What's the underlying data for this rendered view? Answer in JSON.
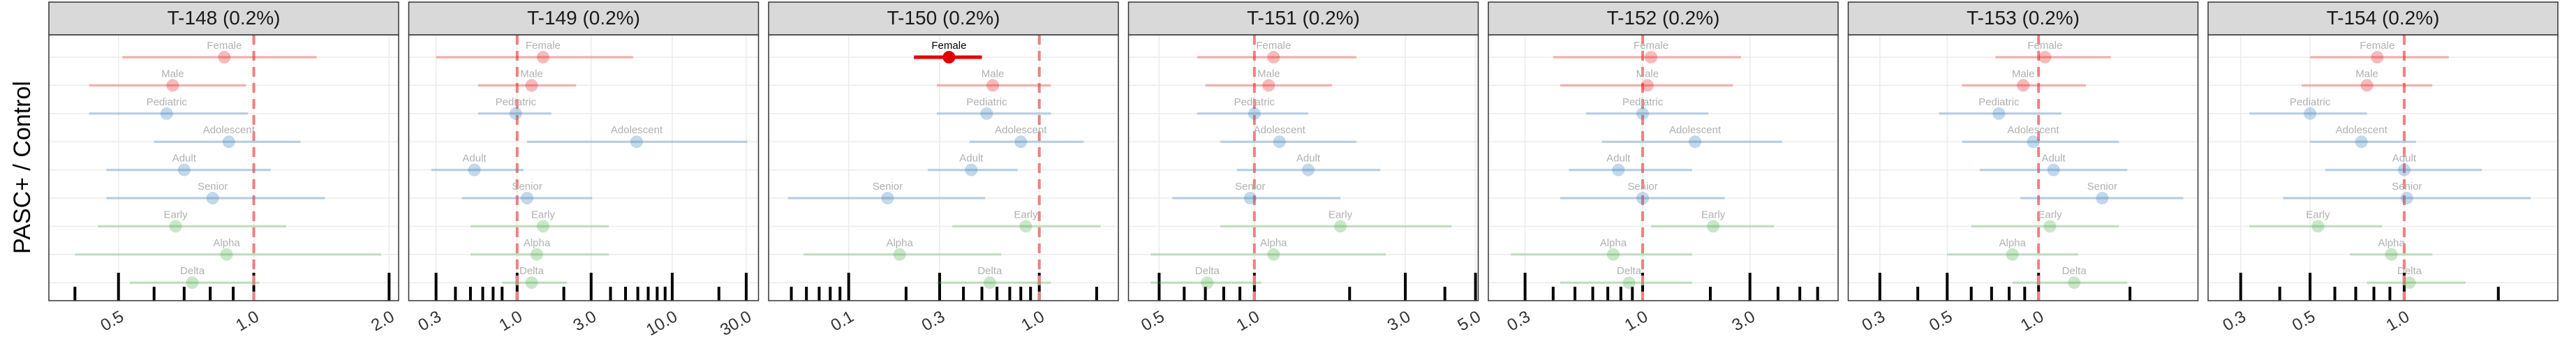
{
  "axis_label": "PASC+ / Control",
  "chart_data": [
    {
      "type": "forest",
      "title": "T-148 (0.2%)",
      "categories": [
        "Female",
        "Male",
        "Pediatric",
        "Adolescent",
        "Adult",
        "Senior",
        "Early",
        "Alpha",
        "Delta"
      ],
      "values": [
        0.86,
        0.66,
        0.64,
        0.88,
        0.7,
        0.81,
        0.67,
        0.87,
        0.73
      ],
      "lower": [
        0.51,
        0.43,
        0.43,
        0.6,
        0.47,
        0.47,
        0.45,
        0.4,
        0.53
      ],
      "upper": [
        1.38,
        0.96,
        0.97,
        1.27,
        1.09,
        1.44,
        1.18,
        1.92,
        1.03
      ],
      "colors": [
        "#e41a1c",
        "#e41a1c",
        "#377eb8",
        "#377eb8",
        "#377eb8",
        "#377eb8",
        "#4daf4a",
        "#4daf4a",
        "#4daf4a"
      ],
      "highlight": [],
      "highlight_color": "#e00000",
      "log_x": true,
      "ref_line": 1,
      "xlim": [
        0.35,
        2.1
      ],
      "xticks": [
        0.5,
        {
          "value": 1,
          "label": "1.0"
        },
        {
          "value": 2,
          "label": "2.0"
        }
      ],
      "minor_xticks": [
        0.4,
        0.6,
        0.7,
        0.8,
        0.9
      ]
    },
    {
      "type": "forest",
      "title": "T-149 (0.2%)",
      "categories": [
        "Female",
        "Male",
        "Pediatric",
        "Adolescent",
        "Adult",
        "Senior",
        "Early",
        "Alpha",
        "Delta"
      ],
      "values": [
        1.47,
        1.24,
        0.98,
        5.9,
        0.53,
        1.16,
        1.47,
        1.34,
        1.24
      ],
      "lower": [
        0.3,
        0.56,
        0.56,
        1.16,
        0.28,
        0.44,
        0.5,
        0.5,
        0.8
      ],
      "upper": [
        5.6,
        2.4,
        1.66,
        30.5,
        1.1,
        3.05,
        3.9,
        3.9,
        2.1
      ],
      "colors": [
        "#e41a1c",
        "#e41a1c",
        "#377eb8",
        "#377eb8",
        "#377eb8",
        "#377eb8",
        "#4daf4a",
        "#4daf4a",
        "#4daf4a"
      ],
      "highlight": [],
      "highlight_color": "#e00000",
      "log_x": true,
      "ref_line": 1,
      "xlim": [
        0.2,
        36
      ],
      "xticks": [
        0.3,
        {
          "value": 1,
          "label": "1.0"
        },
        {
          "value": 3,
          "label": "3.0"
        },
        {
          "value": 10,
          "label": "10.0"
        },
        {
          "value": 30,
          "label": "30.0"
        }
      ],
      "minor_xticks": [
        0.4,
        0.5,
        0.6,
        0.7,
        0.8,
        2,
        4,
        5,
        6,
        7,
        8,
        9,
        20
      ]
    },
    {
      "type": "forest",
      "title": "T-150 (0.2%)",
      "categories": [
        "Female",
        "Male",
        "Pediatric",
        "Adolescent",
        "Adult",
        "Senior",
        "Early",
        "Alpha",
        "Delta"
      ],
      "values": [
        0.336,
        0.57,
        0.53,
        0.8,
        0.44,
        0.16,
        0.85,
        0.185,
        0.55
      ],
      "lower": [
        0.22,
        0.29,
        0.29,
        0.43,
        0.26,
        0.048,
        0.35,
        0.058,
        0.29
      ],
      "upper": [
        0.5,
        1.15,
        1.15,
        1.71,
        0.77,
        0.52,
        2.1,
        0.63,
        1.15
      ],
      "colors": [
        "#e41a1c",
        "#e41a1c",
        "#377eb8",
        "#377eb8",
        "#377eb8",
        "#377eb8",
        "#4daf4a",
        "#4daf4a",
        "#4daf4a"
      ],
      "highlight": [
        0
      ],
      "highlight_color": "#e00000",
      "log_x": true,
      "ref_line": 1,
      "xlim": [
        0.038,
        2.6
      ],
      "xticks": [
        0.1,
        0.3,
        {
          "value": 1,
          "label": "1.0"
        }
      ],
      "minor_xticks": [
        0.05,
        0.06,
        0.07,
        0.08,
        0.09,
        0.2,
        0.4,
        0.5,
        0.6,
        0.7,
        0.8,
        0.9,
        2
      ]
    },
    {
      "type": "forest",
      "title": "T-151 (0.2%)",
      "categories": [
        "Female",
        "Male",
        "Pediatric",
        "Adolescent",
        "Adult",
        "Senior",
        "Early",
        "Alpha",
        "Delta"
      ],
      "values": [
        1.15,
        1.11,
        1.0,
        1.2,
        1.48,
        0.97,
        1.87,
        1.15,
        0.71
      ],
      "lower": [
        0.66,
        0.7,
        0.66,
        0.78,
        0.88,
        0.55,
        0.78,
        0.47,
        0.47
      ],
      "upper": [
        2.1,
        1.76,
        1.48,
        2.1,
        2.5,
        1.87,
        4.2,
        2.6,
        1.05
      ],
      "colors": [
        "#e41a1c",
        "#e41a1c",
        "#377eb8",
        "#377eb8",
        "#377eb8",
        "#377eb8",
        "#4daf4a",
        "#4daf4a",
        "#4daf4a"
      ],
      "highlight": [],
      "highlight_color": "#e00000",
      "log_x": true,
      "ref_line": 1,
      "xlim": [
        0.4,
        5.1
      ],
      "xticks": [
        0.5,
        {
          "value": 1,
          "label": "1.0"
        },
        {
          "value": 3,
          "label": "3.0"
        },
        {
          "value": 5,
          "label": "5.0"
        }
      ],
      "minor_xticks": [
        0.6,
        0.7,
        0.8,
        0.9,
        2,
        4
      ]
    },
    {
      "type": "forest",
      "title": "T-152 (0.2%)",
      "categories": [
        "Female",
        "Male",
        "Pediatric",
        "Adolescent",
        "Adult",
        "Senior",
        "Early",
        "Alpha",
        "Delta"
      ],
      "values": [
        1.09,
        1.05,
        1.0,
        1.71,
        0.78,
        1.0,
        2.06,
        0.74,
        0.87
      ],
      "lower": [
        0.4,
        0.43,
        0.56,
        0.66,
        0.47,
        0.43,
        1.09,
        0.26,
        0.43
      ],
      "upper": [
        2.74,
        2.52,
        1.96,
        4.17,
        1.66,
        2.32,
        3.84,
        1.66,
        1.66
      ],
      "colors": [
        "#e41a1c",
        "#e41a1c",
        "#377eb8",
        "#377eb8",
        "#377eb8",
        "#377eb8",
        "#4daf4a",
        "#4daf4a",
        "#4daf4a"
      ],
      "highlight": [],
      "highlight_color": "#e00000",
      "log_x": true,
      "ref_line": 1,
      "xlim": [
        0.206,
        7.4
      ],
      "xticks": [
        0.3,
        {
          "value": 1,
          "label": "1.0"
        },
        {
          "value": 3,
          "label": "3.0"
        }
      ],
      "minor_xticks": [
        0.4,
        0.5,
        0.6,
        0.7,
        0.8,
        0.9,
        2,
        4,
        5,
        6
      ]
    },
    {
      "type": "forest",
      "title": "T-153 (0.2%)",
      "categories": [
        "Female",
        "Male",
        "Pediatric",
        "Adolescent",
        "Adult",
        "Senior",
        "Early",
        "Alpha",
        "Delta"
      ],
      "values": [
        1.05,
        0.89,
        0.74,
        0.96,
        1.12,
        1.62,
        1.09,
        0.82,
        1.31
      ],
      "lower": [
        0.72,
        0.56,
        0.47,
        0.56,
        0.64,
        0.87,
        0.6,
        0.5,
        0.82
      ],
      "upper": [
        1.73,
        1.43,
        1.19,
        1.84,
        1.96,
        3.0,
        1.84,
        1.35,
        1.96
      ],
      "colors": [
        "#e41a1c",
        "#e41a1c",
        "#377eb8",
        "#377eb8",
        "#377eb8",
        "#377eb8",
        "#4daf4a",
        "#4daf4a",
        "#4daf4a"
      ],
      "highlight": [],
      "highlight_color": "#e00000",
      "log_x": true,
      "ref_line": 1,
      "xlim": [
        0.236,
        3.35
      ],
      "xticks": [
        0.3,
        0.5,
        {
          "value": 1,
          "label": "1.0"
        }
      ],
      "minor_xticks": [
        0.4,
        0.6,
        0.7,
        0.8,
        0.9,
        2
      ]
    },
    {
      "type": "forest",
      "title": "T-154 (0.2%)",
      "categories": [
        "Female",
        "Male",
        "Pediatric",
        "Adolescent",
        "Adult",
        "Senior",
        "Early",
        "Alpha",
        "Delta"
      ],
      "values": [
        0.82,
        0.76,
        0.5,
        0.73,
        1.0,
        1.02,
        0.53,
        0.91,
        1.04
      ],
      "lower": [
        0.5,
        0.47,
        0.32,
        0.5,
        0.56,
        0.41,
        0.32,
        0.67,
        0.76
      ],
      "upper": [
        1.39,
        1.23,
        0.76,
        1.09,
        1.77,
        2.54,
        0.85,
        1.23,
        1.57
      ],
      "colors": [
        "#e41a1c",
        "#e41a1c",
        "#377eb8",
        "#377eb8",
        "#377eb8",
        "#377eb8",
        "#4daf4a",
        "#4daf4a",
        "#4daf4a"
      ],
      "highlight": [],
      "highlight_color": "#e00000",
      "log_x": true,
      "ref_line": 1,
      "xlim": [
        0.236,
        3.1
      ],
      "xticks": [
        0.3,
        0.5,
        {
          "value": 1,
          "label": "1.0"
        }
      ],
      "minor_xticks": [
        0.4,
        0.6,
        0.7,
        0.8,
        0.9,
        2
      ]
    }
  ]
}
